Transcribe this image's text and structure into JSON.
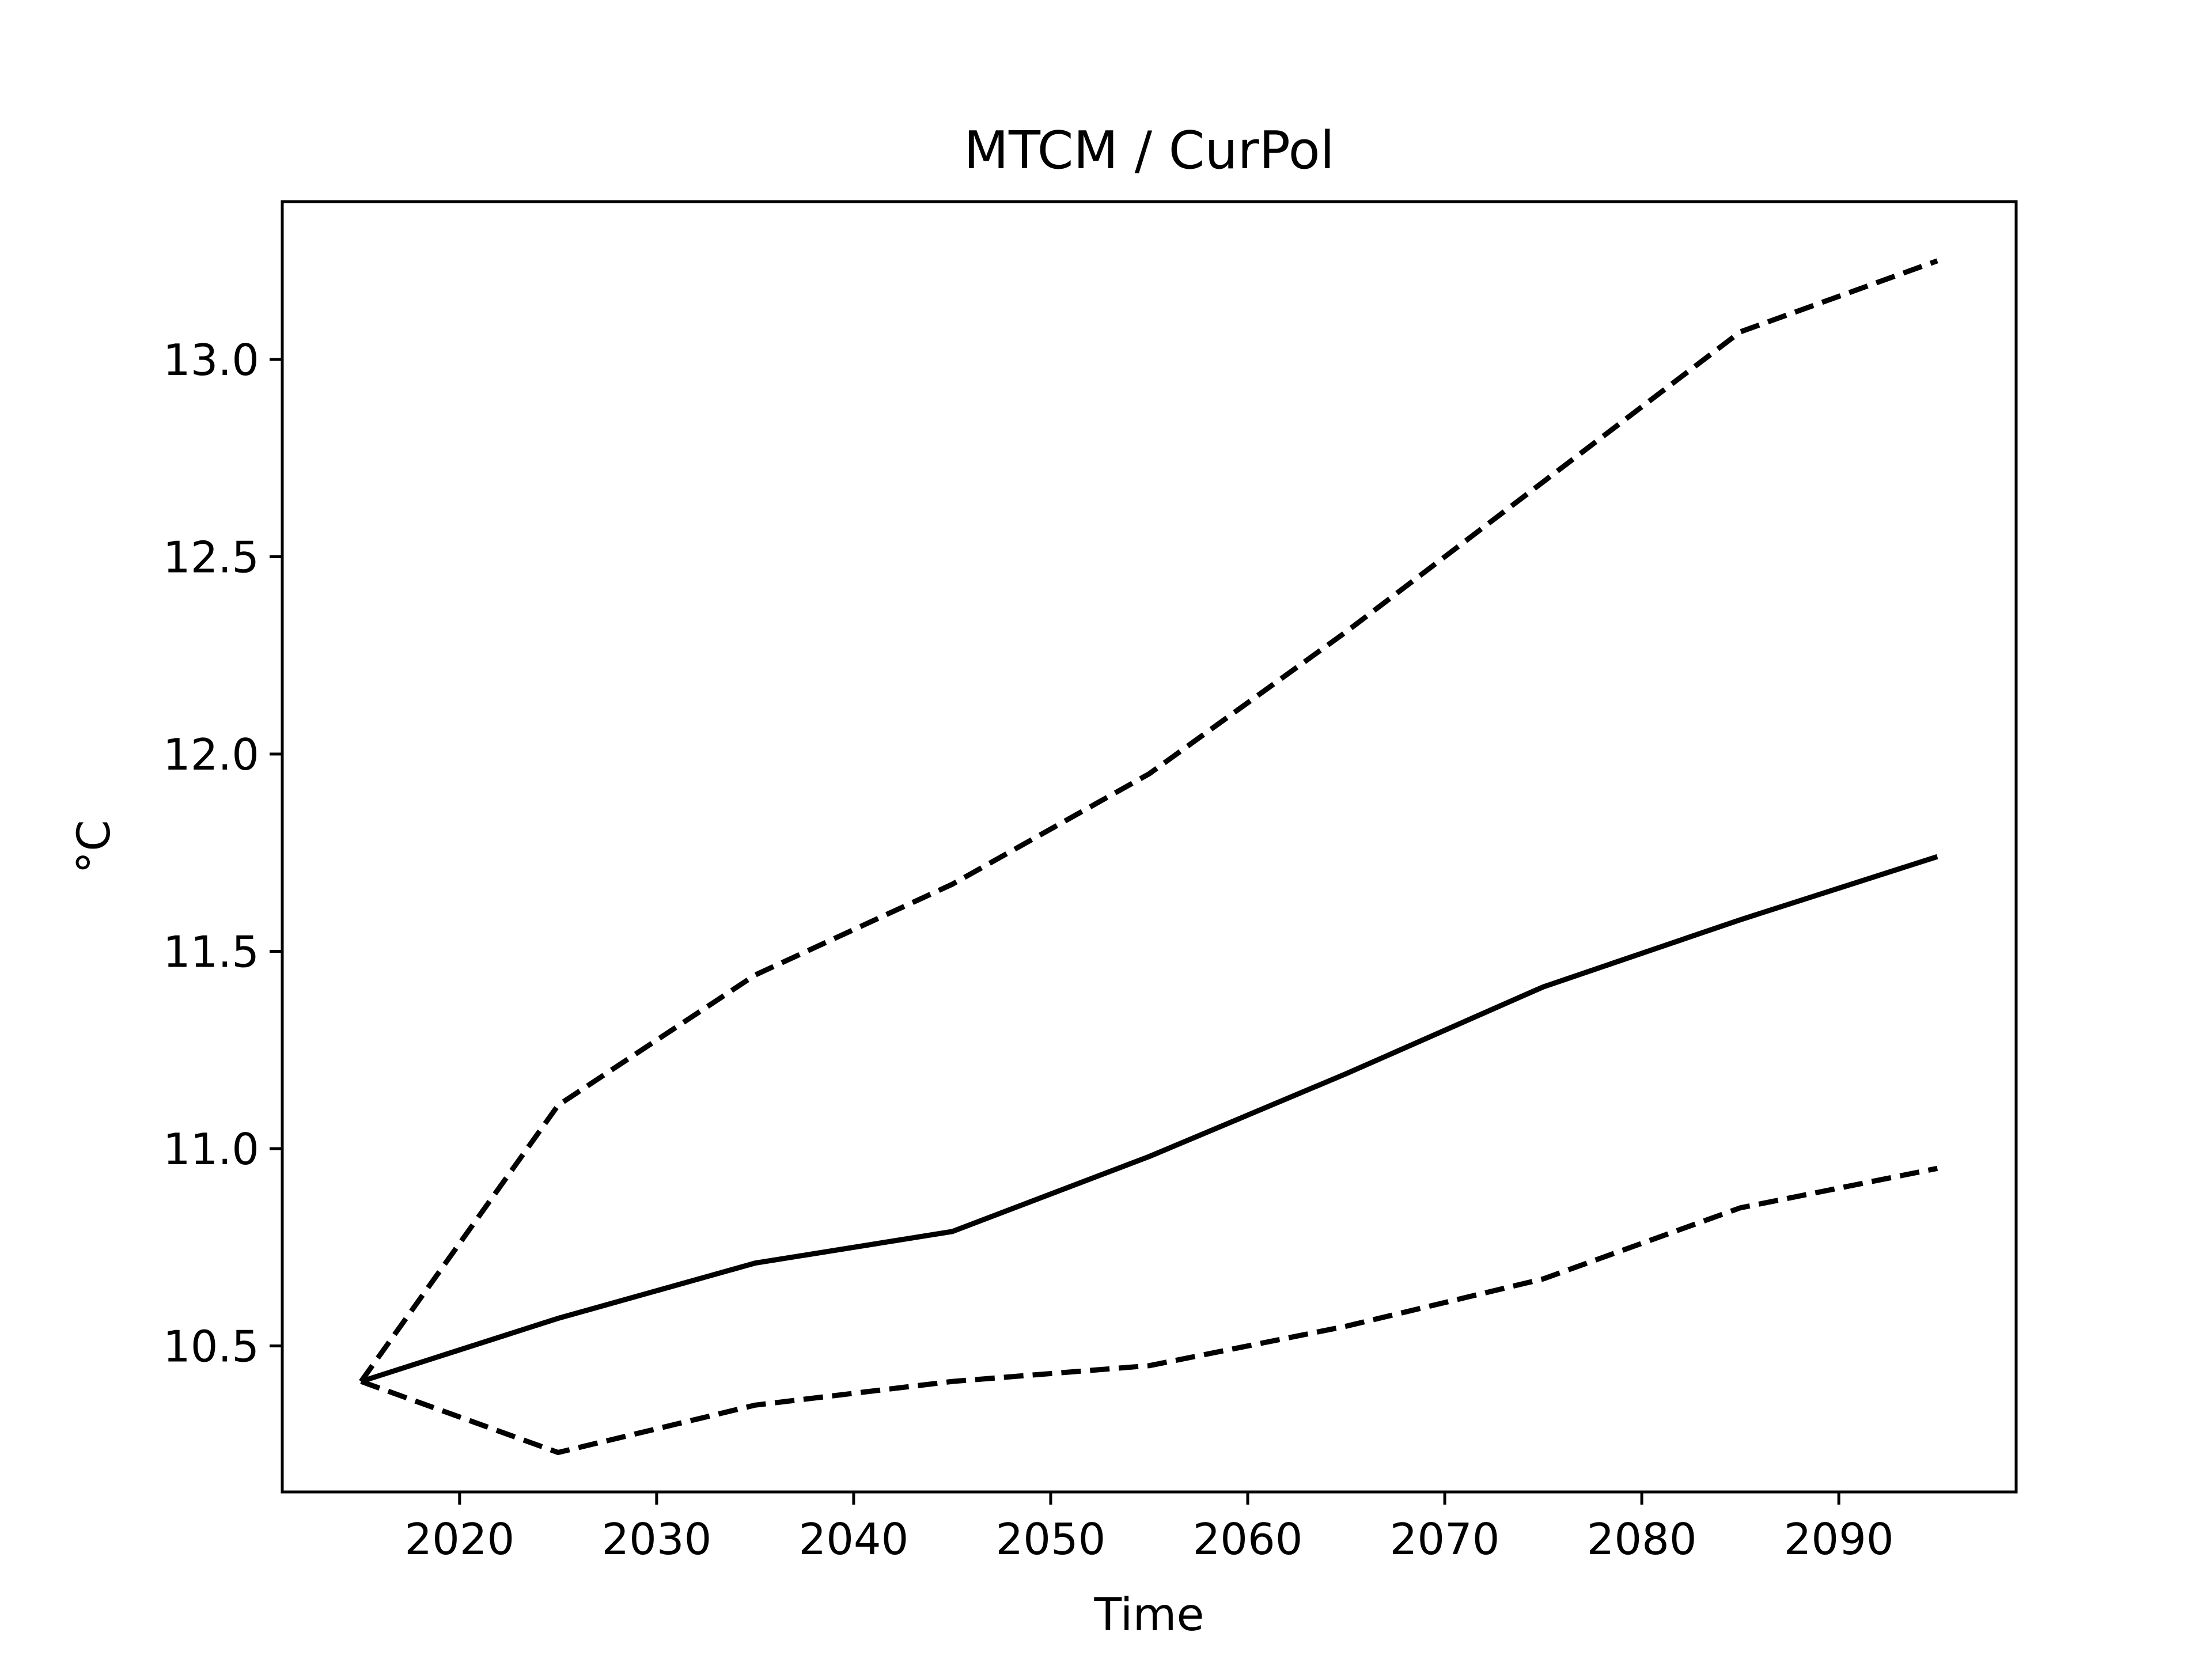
{
  "chart_data": {
    "type": "line",
    "title": "MTCM / CurPol",
    "xlabel": "Time",
    "ylabel": "°C",
    "xlim": [
      2011,
      2099
    ],
    "ylim": [
      10.13,
      13.4
    ],
    "xticks": [
      2020,
      2030,
      2040,
      2050,
      2060,
      2070,
      2080,
      2090
    ],
    "yticks": [
      10.5,
      11.0,
      11.5,
      12.0,
      12.5,
      13.0
    ],
    "ytick_labels": [
      "10.5",
      "11.0",
      "11.5",
      "12.0",
      "12.5",
      "13.0"
    ],
    "grid": false,
    "x": [
      2015,
      2025,
      2035,
      2045,
      2055,
      2065,
      2075,
      2085,
      2095
    ],
    "series": [
      {
        "style": "dashed",
        "color": "#000000",
        "values": [
          10.41,
          11.11,
          11.44,
          11.67,
          11.95,
          12.31,
          12.69,
          13.07,
          13.25
        ]
      },
      {
        "style": "solid",
        "color": "#000000",
        "values": [
          10.41,
          10.57,
          10.71,
          10.79,
          10.98,
          11.19,
          11.41,
          11.58,
          11.74
        ]
      },
      {
        "style": "dashed",
        "color": "#000000",
        "values": [
          10.41,
          10.23,
          10.35,
          10.41,
          10.45,
          10.55,
          10.67,
          10.85,
          10.95
        ]
      }
    ]
  }
}
